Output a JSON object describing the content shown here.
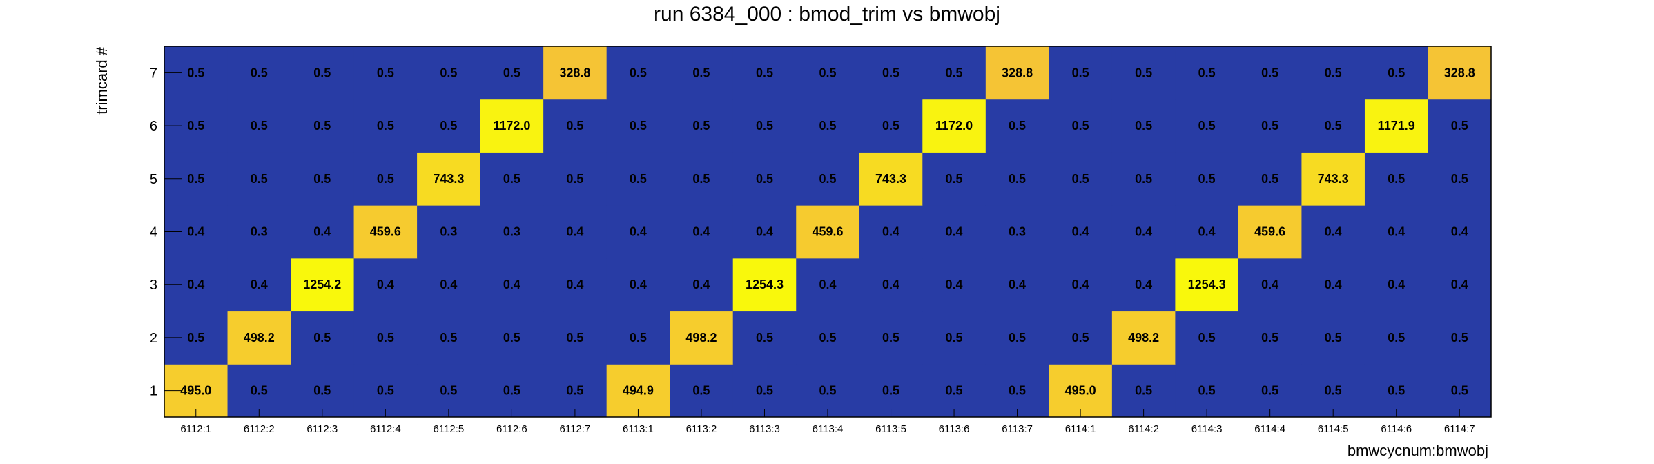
{
  "chart_data": {
    "type": "heatmap",
    "title": "run 6384_000 : bmod_trim vs bmwobj",
    "xlabel": "bmwcycnum:bmwobj",
    "ylabel": "trimcard #",
    "x_categories": [
      "6112:1",
      "6112:2",
      "6112:3",
      "6112:4",
      "6112:5",
      "6112:6",
      "6112:7",
      "6113:1",
      "6113:2",
      "6113:3",
      "6113:4",
      "6113:5",
      "6113:6",
      "6113:7",
      "6114:1",
      "6114:2",
      "6114:3",
      "6114:4",
      "6114:5",
      "6114:6",
      "6114:7"
    ],
    "y_categories": [
      "1",
      "2",
      "3",
      "4",
      "5",
      "6",
      "7"
    ],
    "values": [
      [
        495.0,
        0.5,
        0.5,
        0.5,
        0.5,
        0.5,
        0.5,
        494.9,
        0.5,
        0.5,
        0.5,
        0.5,
        0.5,
        0.5,
        495.0,
        0.5,
        0.5,
        0.5,
        0.5,
        0.5,
        0.5
      ],
      [
        0.5,
        498.2,
        0.5,
        0.5,
        0.5,
        0.5,
        0.5,
        0.5,
        498.2,
        0.5,
        0.5,
        0.5,
        0.5,
        0.5,
        0.5,
        498.2,
        0.5,
        0.5,
        0.5,
        0.5,
        0.5
      ],
      [
        0.4,
        0.4,
        1254.2,
        0.4,
        0.4,
        0.4,
        0.4,
        0.4,
        0.4,
        1254.3,
        0.4,
        0.4,
        0.4,
        0.4,
        0.4,
        0.4,
        1254.3,
        0.4,
        0.4,
        0.4,
        0.4
      ],
      [
        0.4,
        0.3,
        0.4,
        459.6,
        0.3,
        0.3,
        0.4,
        0.4,
        0.4,
        0.4,
        459.6,
        0.4,
        0.4,
        0.3,
        0.4,
        0.4,
        0.4,
        459.6,
        0.4,
        0.4,
        0.4
      ],
      [
        0.5,
        0.5,
        0.5,
        0.5,
        743.3,
        0.5,
        0.5,
        0.5,
        0.5,
        0.5,
        0.5,
        743.3,
        0.5,
        0.5,
        0.5,
        0.5,
        0.5,
        0.5,
        743.3,
        0.5,
        0.5
      ],
      [
        0.5,
        0.5,
        0.5,
        0.5,
        0.5,
        1172.0,
        0.5,
        0.5,
        0.5,
        0.5,
        0.5,
        0.5,
        1172.0,
        0.5,
        0.5,
        0.5,
        0.5,
        0.5,
        0.5,
        1171.9,
        0.5
      ],
      [
        0.5,
        0.5,
        0.5,
        0.5,
        0.5,
        0.5,
        328.8,
        0.5,
        0.5,
        0.5,
        0.5,
        0.5,
        0.5,
        328.8,
        0.5,
        0.5,
        0.5,
        0.5,
        0.5,
        0.5,
        328.8
      ]
    ],
    "colors": {
      "low": "#283ca5",
      "mid": "#f5c236",
      "high": "#f9f80c"
    },
    "grid": false,
    "legend": "none"
  }
}
